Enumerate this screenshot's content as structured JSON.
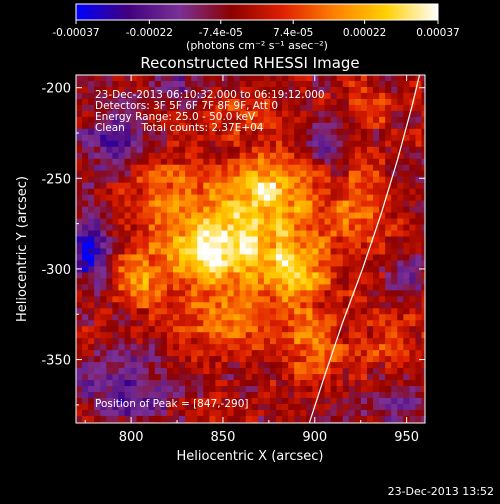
{
  "chart_data": {
    "type": "heatmap",
    "title": "Reconstructed RHESSI Image",
    "xlabel": "Heliocentric X (arcsec)",
    "ylabel": "Heliocentric Y (arcsec)",
    "xlim": [
      770,
      960
    ],
    "ylim": [
      -385,
      -193
    ],
    "x_ticks": [
      800,
      850,
      900,
      950
    ],
    "x_tick_labels": [
      "800",
      "850",
      "900",
      "950"
    ],
    "y_ticks": [
      -200,
      -250,
      -300,
      -350
    ],
    "y_tick_labels": [
      "-200",
      "-250",
      "-300",
      "-350"
    ],
    "colorbar": {
      "min": -0.00037,
      "max": 0.00037,
      "colors": [
        "#0000ff",
        "#40007f",
        "#7a3096",
        "#8c0000",
        "#e02000",
        "#ff8000",
        "#ffd000",
        "#ffffff"
      ],
      "ticks": [
        -0.00037,
        -0.00022,
        -7.4e-05,
        7.4e-05,
        0.00022,
        0.00037
      ],
      "tick_labels": [
        "-0.00037",
        "-0.00022",
        "-7.4e-05",
        "7.4e-05",
        "0.00022",
        "0.00037"
      ],
      "unit_label": "(photons cm⁻² s⁻¹ asec⁻²)"
    },
    "annotations": [
      "23-Dec-2013 06:10:32.000 to 06:19:12.000",
      "Detectors: 3F 5F 6F 7F 8F 9F, Att 0",
      "Energy Range: 25.0 - 50.0 keV",
      "Clean     Total counts: 2.37E+04"
    ],
    "peak_label": "Position of Peak = [847,-290]",
    "peak": [
      847,
      -290
    ],
    "limb_line": [
      [
        897,
        -385
      ],
      [
        905,
        -360
      ],
      [
        915,
        -330
      ],
      [
        926,
        -300
      ],
      [
        936,
        -270
      ],
      [
        945,
        -240
      ],
      [
        953,
        -210
      ],
      [
        957,
        -193
      ]
    ],
    "blobs": [
      {
        "x": 847,
        "y": -290,
        "sx": 16,
        "sy": 14,
        "a": 1.0
      },
      {
        "x": 873,
        "y": -258,
        "sx": 17,
        "sy": 15,
        "a": 0.82
      },
      {
        "x": 888,
        "y": -300,
        "sx": 16,
        "sy": 17,
        "a": 0.72
      },
      {
        "x": 820,
        "y": -262,
        "sx": 15,
        "sy": 13,
        "a": 0.5
      },
      {
        "x": 808,
        "y": -305,
        "sx": 13,
        "sy": 14,
        "a": 0.45
      },
      {
        "x": 848,
        "y": -328,
        "sx": 18,
        "sy": 10,
        "a": 0.5
      },
      {
        "x": 900,
        "y": -345,
        "sx": 12,
        "sy": 12,
        "a": 0.4
      },
      {
        "x": 925,
        "y": -268,
        "sx": 12,
        "sy": 16,
        "a": 0.42
      },
      {
        "x": 942,
        "y": -338,
        "sx": 10,
        "sy": 10,
        "a": 0.32
      },
      {
        "x": 862,
        "y": -215,
        "sx": 15,
        "sy": 9,
        "a": 0.3
      },
      {
        "x": 930,
        "y": -210,
        "sx": 10,
        "sy": 9,
        "a": 0.25
      },
      {
        "x": 790,
        "y": -230,
        "sx": 10,
        "sy": 12,
        "a": -0.55
      },
      {
        "x": 778,
        "y": -290,
        "sx": 7,
        "sy": 14,
        "a": -0.7
      },
      {
        "x": 800,
        "y": -365,
        "sx": 18,
        "sy": 14,
        "a": -0.45
      },
      {
        "x": 905,
        "y": -233,
        "sx": 8,
        "sy": 8,
        "a": -0.4
      },
      {
        "x": 952,
        "y": -305,
        "sx": 7,
        "sy": 10,
        "a": -0.35
      },
      {
        "x": 945,
        "y": -375,
        "sx": 10,
        "sy": 8,
        "a": -0.4
      },
      {
        "x": 835,
        "y": -198,
        "sx": 14,
        "sy": 6,
        "a": -0.3
      }
    ]
  },
  "footer": {
    "timestamp": "23-Dec-2013 13:52"
  }
}
